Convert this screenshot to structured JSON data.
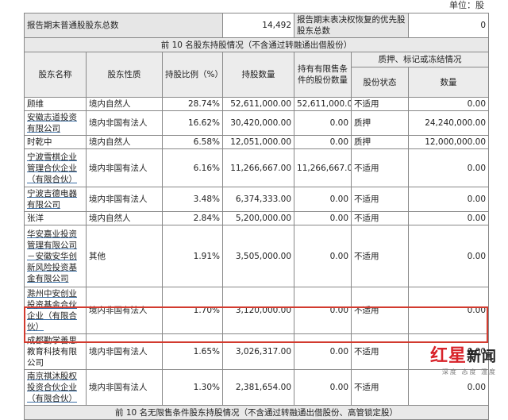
{
  "unit_note": "单位：股",
  "summary": {
    "common_label": "报告期末普通股股东总数",
    "common_value": "14,492",
    "preferred_label": "报告期末表决权恢复的优先股股东总数",
    "preferred_value": "0"
  },
  "top10_title": "前 10 名股东持股情况（不含通过转融通出借股份）",
  "headers": {
    "name": "股东名称",
    "nature": "股东性质",
    "ratio": "持股比例（%）",
    "shares": "持股数量",
    "restricted": "持有有限售条件的股份数量",
    "pledge_group": "质押、标记或冻结情况",
    "status": "股份状态",
    "quantity": "数量"
  },
  "rows": [
    {
      "name": "顾维",
      "nature": "境内自然人",
      "ratio": "28.74%",
      "shares": "52,611,000.00",
      "restricted": "52,611,000.00",
      "status": "不适用",
      "quantity": "0.00"
    },
    {
      "name": "安徽志道投资有限公司",
      "nature": "境内非国有法人",
      "ratio": "16.62%",
      "shares": "30,420,000.00",
      "restricted": "0.00",
      "status": "质押",
      "quantity": "24,240,000.00"
    },
    {
      "name": "时乾中",
      "nature": "境内自然人",
      "ratio": "6.58%",
      "shares": "12,051,000.00",
      "restricted": "0.00",
      "status": "质押",
      "quantity": "12,000,000.00"
    },
    {
      "name": "宁波雪棋企业管理合伙企业（有限合伙）",
      "nature": "境内非国有法人",
      "ratio": "6.16%",
      "shares": "11,266,667.00",
      "restricted": "11,266,667.00",
      "status": "不适用",
      "quantity": "0.00"
    },
    {
      "name": "宁波吉德电器有限公司",
      "nature": "境内非国有法人",
      "ratio": "3.48%",
      "shares": "6,374,333.00",
      "restricted": "0.00",
      "status": "不适用",
      "quantity": "0.00"
    },
    {
      "name": "张洋",
      "nature": "境内自然人",
      "ratio": "2.84%",
      "shares": "5,200,000.00",
      "restricted": "0.00",
      "status": "不适用",
      "quantity": "0.00"
    },
    {
      "name": "华安嘉业投资管理有限公司－安徽安华创新风险投资基金有限公司",
      "nature": "其他",
      "ratio": "1.91%",
      "shares": "3,505,000.00",
      "restricted": "0.00",
      "status": "不适用",
      "quantity": "0.00"
    },
    {
      "name": "滁州中安创业投资基金合伙企业（有限合伙）",
      "nature": "境内非国有法人",
      "ratio": "1.70%",
      "shares": "3,120,000.00",
      "restricted": "0.00",
      "status": "不适用",
      "quantity": "0.00"
    },
    {
      "name": "成都勤学善思教育科技有限公司",
      "nature": "境内非国有法人",
      "ratio": "1.65%",
      "shares": "3,026,317.00",
      "restricted": "0.00",
      "status": "不适用",
      "quantity": "0.00"
    },
    {
      "name": "南京祺沐股权投资合伙企业（有限合伙）",
      "nature": "境内非国有法人",
      "ratio": "1.30%",
      "shares": "2,381,654.00",
      "restricted": "0.00",
      "status": "不适用",
      "quantity": "0.00"
    }
  ],
  "unrestricted_title": "前 10 名无限售条件股东持股情况（不含通过转融通出借股份、高管锁定股）",
  "watermark": {
    "main_red": "红星",
    "main_black": "新闻",
    "sub": "深度 态度 温度"
  }
}
